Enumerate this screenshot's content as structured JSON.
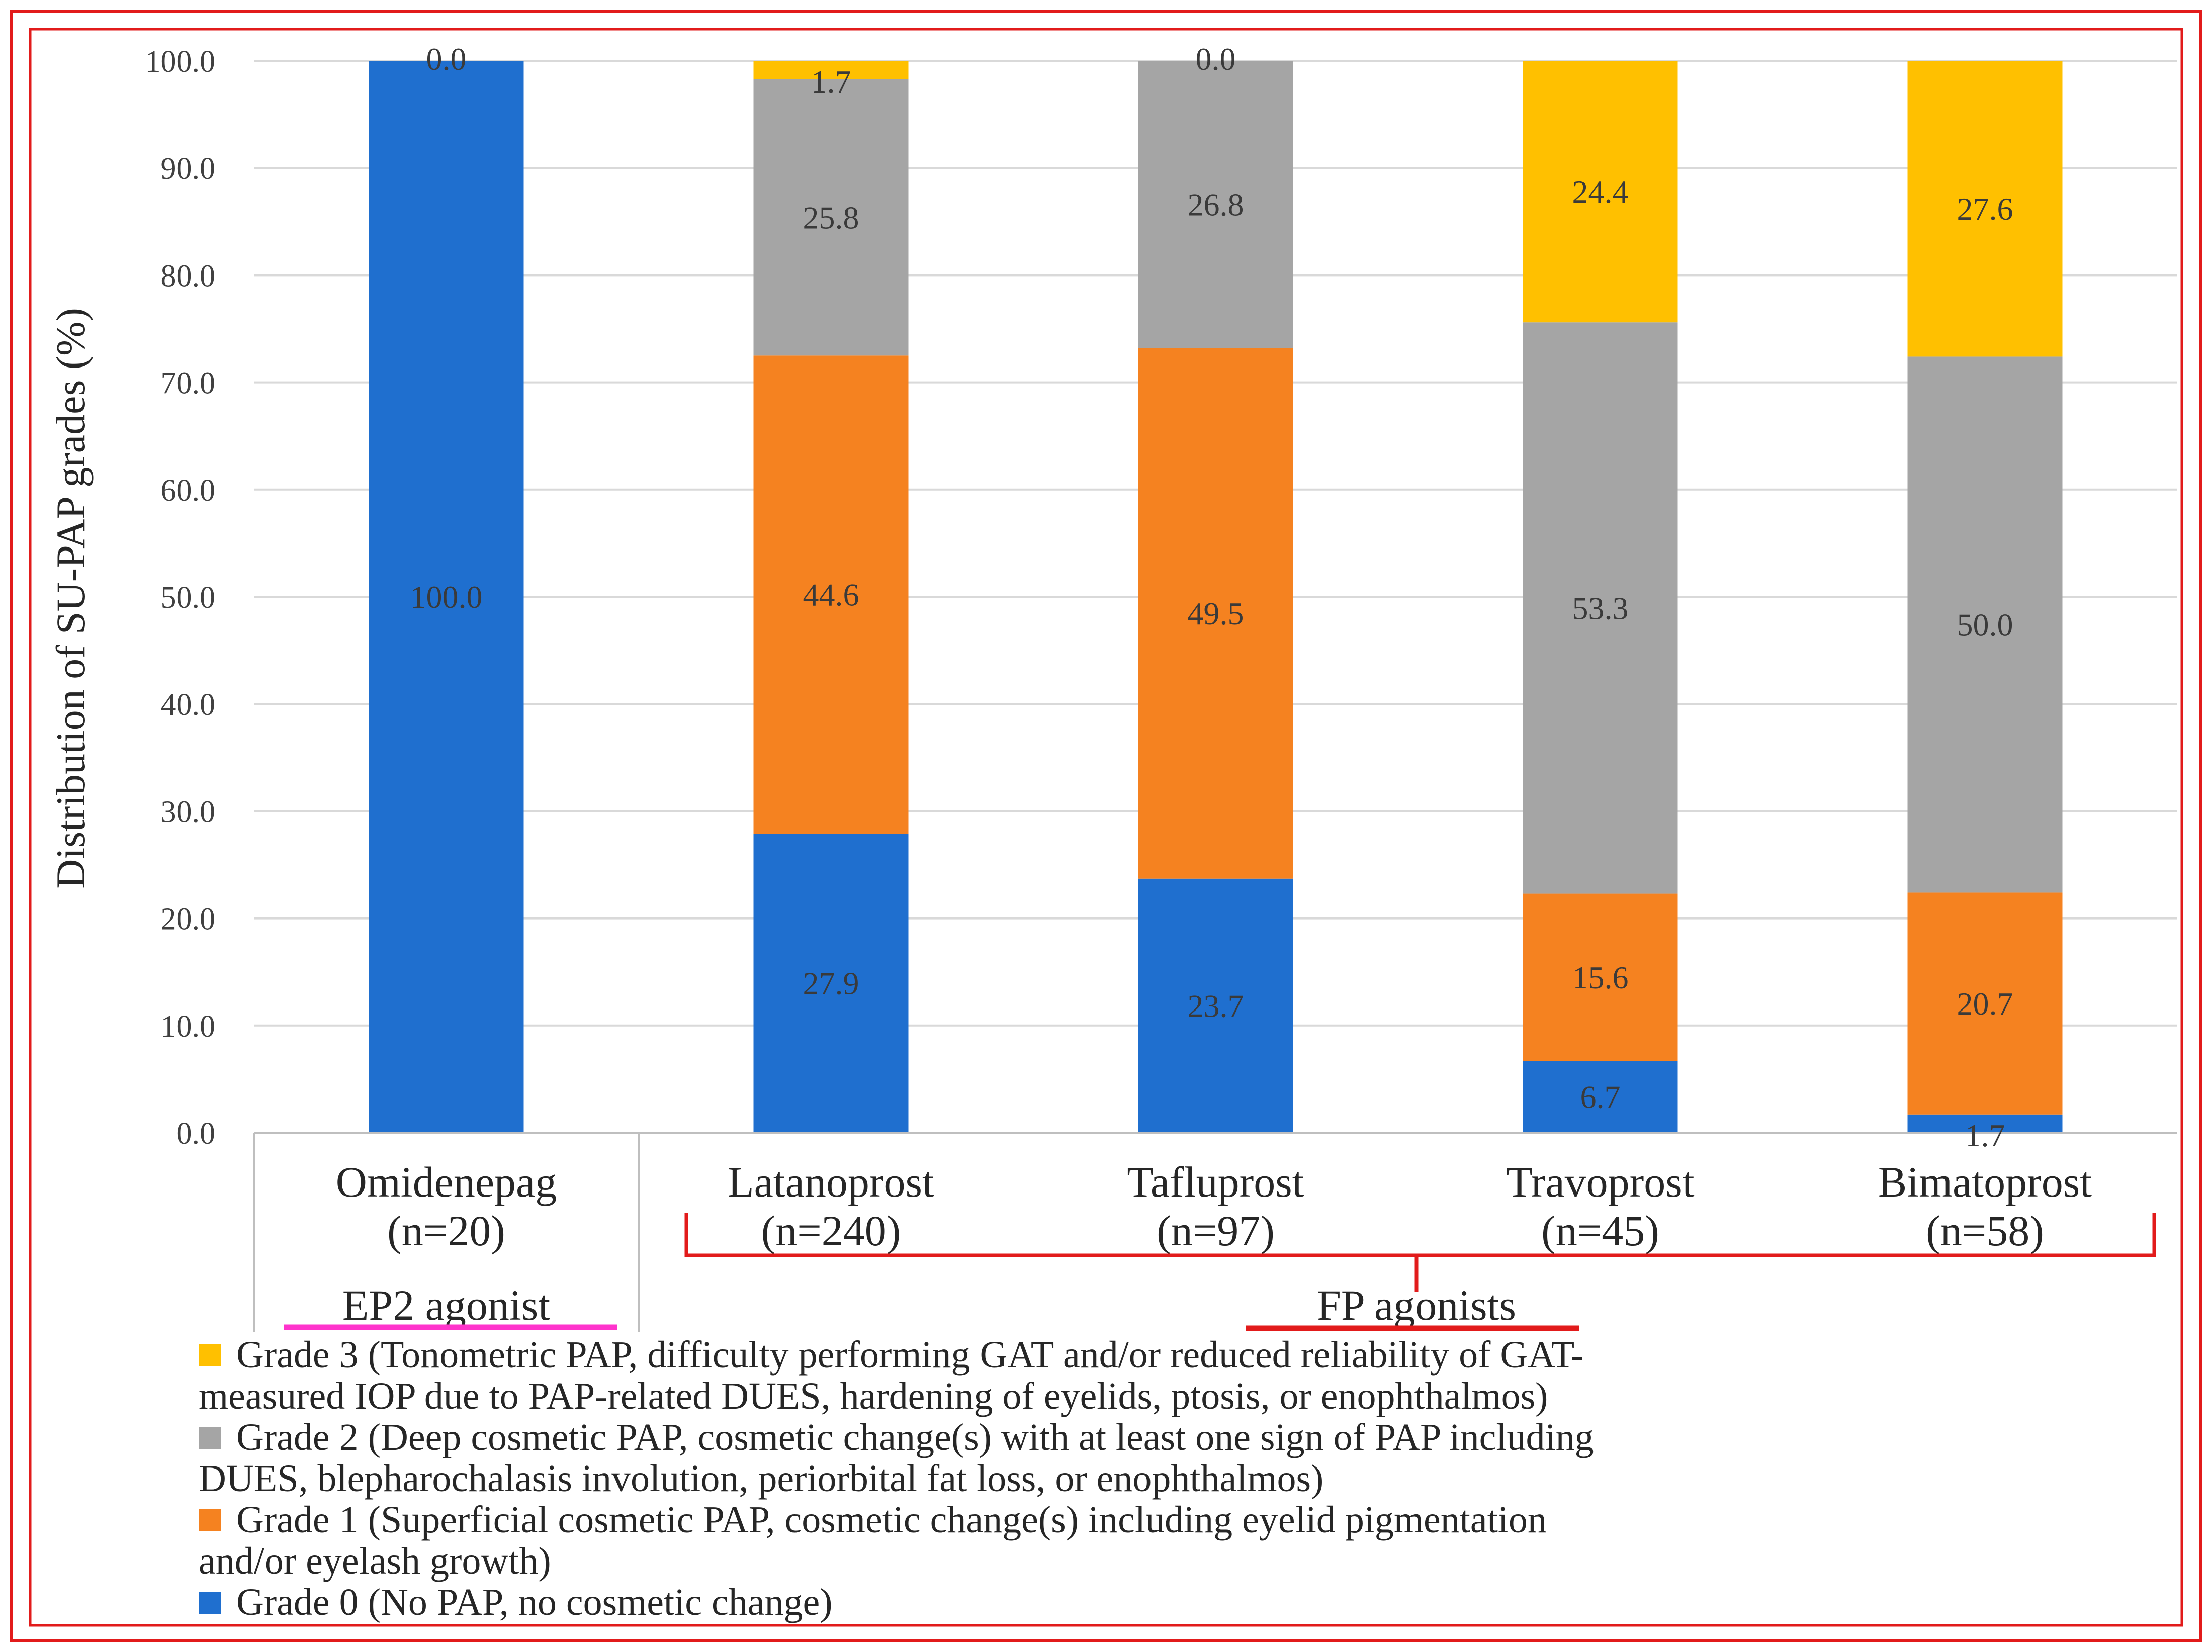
{
  "chart_data": {
    "type": "bar",
    "stacked": true,
    "ylabel": "Distribution of SU-PAP grades (%)",
    "ylim": [
      0,
      100
    ],
    "grid": true,
    "y_ticks": [
      "0.0",
      "10.0",
      "20.0",
      "30.0",
      "40.0",
      "50.0",
      "60.0",
      "70.0",
      "80.0",
      "90.0",
      "100.0"
    ],
    "categories": [
      {
        "name": "Omidenepag",
        "n": "(n=20)"
      },
      {
        "name": "Latanoprost",
        "n": "(n=240)"
      },
      {
        "name": "Tafluprost",
        "n": "(n=97)"
      },
      {
        "name": "Travoprost",
        "n": "(n=45)"
      },
      {
        "name": "Bimatoprost",
        "n": "(n=58)"
      }
    ],
    "series": [
      {
        "name": "Grade 0",
        "color": "#1f6fcf",
        "values": [
          100.0,
          27.9,
          23.7,
          6.7,
          1.7
        ],
        "labels": [
          "100.0",
          "27.9",
          "23.7",
          "6.7",
          "1.7"
        ]
      },
      {
        "name": "Grade 1",
        "color": "#f58220",
        "values": [
          0,
          44.6,
          49.5,
          15.6,
          20.7
        ],
        "labels": [
          "",
          "44.6",
          "49.5",
          "15.6",
          "20.7"
        ]
      },
      {
        "name": "Grade 2",
        "color": "#a5a5a5",
        "values": [
          0,
          25.8,
          26.8,
          53.3,
          50.0
        ],
        "labels": [
          "",
          "25.8",
          "26.8",
          "53.3",
          "50.0"
        ]
      },
      {
        "name": "Grade 3",
        "color": "#ffc000",
        "values": [
          0.0,
          1.7,
          0.0,
          24.4,
          27.6
        ],
        "labels": [
          "0.0",
          "1.7",
          "0.0",
          "24.4",
          "27.6"
        ]
      }
    ],
    "groups": [
      {
        "label": "EP2 agonist",
        "color": "#ff33cc"
      },
      {
        "label": "FP agonists",
        "color": "#e21b1b"
      }
    ],
    "legend": [
      {
        "color": "#ffc000",
        "lines": [
          "Grade 3 (Tonometric PAP, difficulty performing GAT and/or reduced reliability of GAT-",
          "measured IOP due to PAP-related DUES, hardening of eyelids, ptosis, or enophthalmos)"
        ]
      },
      {
        "color": "#a5a5a5",
        "lines": [
          "Grade 2 (Deep cosmetic PAP, cosmetic change(s) with at least one sign of PAP including",
          "DUES, blepharochalasis involution, periorbital fat loss, or enophthalmos)"
        ]
      },
      {
        "color": "#f58220",
        "lines": [
          "Grade 1 (Superficial cosmetic PAP, cosmetic change(s) including eyelid pigmentation",
          "and/or eyelash growth)"
        ]
      },
      {
        "color": "#1f6fcf",
        "lines": [
          "Grade 0 (No PAP, no cosmetic change)"
        ]
      }
    ],
    "frame_color": "#e21b1b"
  }
}
